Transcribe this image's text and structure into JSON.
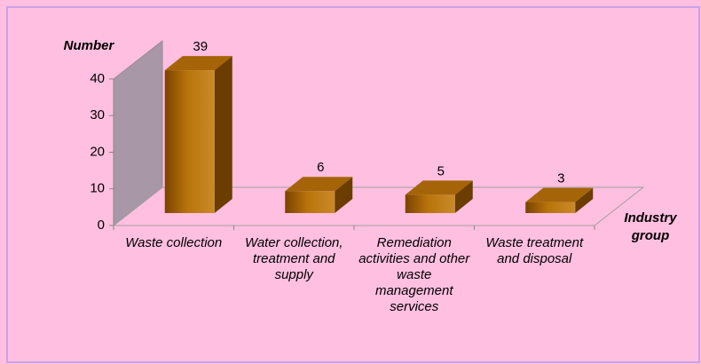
{
  "chart_data": {
    "type": "bar3d",
    "y_axis_label": "Number",
    "x_axis_label": "Industry group",
    "categories": [
      "Waste collection",
      "Water collection, treatment and supply",
      "Remediation activities and other waste management services",
      "Waste treatment and disposal"
    ],
    "values": [
      39,
      6,
      5,
      3
    ],
    "color": "#b8740a",
    "ylim": [
      0,
      40
    ],
    "yticks": [
      0,
      10,
      20,
      30,
      40
    ]
  }
}
